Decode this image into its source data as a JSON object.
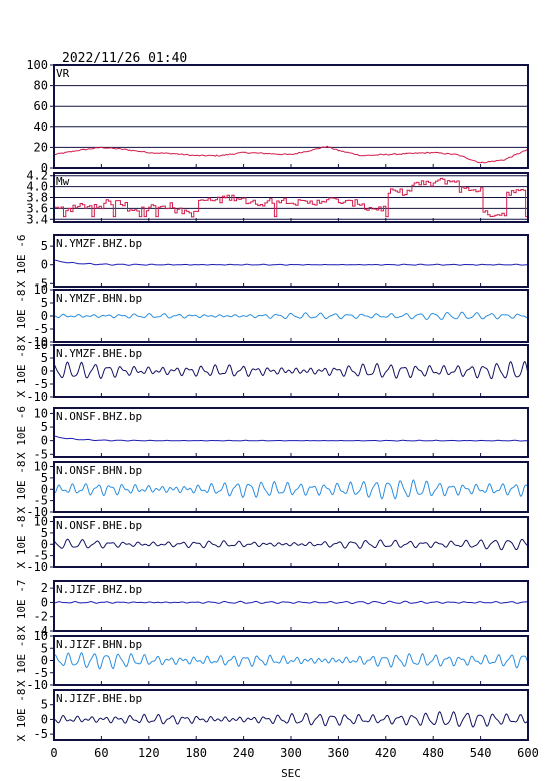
{
  "header": {
    "timestamp": "2022/11/26 01:40"
  },
  "chart_data": {
    "type": "line",
    "xlabel": "SEC",
    "xlim": [
      0,
      600
    ],
    "x_ticks": [
      "0",
      "60",
      "120",
      "180",
      "240",
      "300",
      "360",
      "420",
      "480",
      "540",
      "600"
    ],
    "colors": {
      "vr": "#d21a4a",
      "mw": "#d21a4a",
      "z": "#1a1ab4",
      "n": "#2a8ee0",
      "e": "#101060",
      "frame": "#101040"
    },
    "panels": [
      {
        "id": "vr",
        "label": "VR",
        "kind": "curve",
        "ylim": [
          0,
          100
        ],
        "y_ticks": [
          "0",
          "20",
          "40",
          "60",
          "80",
          "100"
        ],
        "grid": true,
        "color_key": "vr",
        "x": [
          0,
          30,
          60,
          90,
          120,
          150,
          180,
          210,
          240,
          270,
          300,
          330,
          345,
          360,
          390,
          420,
          450,
          480,
          510,
          540,
          570,
          600
        ],
        "y": [
          13,
          17,
          20,
          18,
          15,
          14,
          12,
          12,
          15,
          14,
          13,
          18,
          21,
          17,
          12,
          13,
          14,
          15,
          13,
          5,
          8,
          18
        ]
      },
      {
        "id": "mw",
        "label": "Mw",
        "kind": "step",
        "ylim": [
          3.35,
          4.25
        ],
        "y_ticks": [
          "3.4",
          "3.6",
          "3.8",
          "4.0",
          "4.2"
        ],
        "grid": true,
        "color_key": "mw",
        "x": [
          0,
          30,
          60,
          90,
          120,
          150,
          170,
          180,
          210,
          240,
          270,
          300,
          330,
          360,
          390,
          420,
          450,
          480,
          510,
          540,
          570,
          600
        ],
        "y": [
          3.6,
          3.65,
          3.7,
          3.6,
          3.65,
          3.55,
          3.5,
          3.75,
          3.8,
          3.7,
          3.75,
          3.7,
          3.75,
          3.7,
          3.6,
          3.9,
          4.05,
          4.1,
          3.95,
          3.5,
          3.9,
          3.9
        ]
      },
      {
        "id": "ymzf-bhz",
        "label": "N.YMZF.BHZ.bp",
        "kind": "wave",
        "color_key": "z",
        "ylim": [
          -6,
          8
        ],
        "y_ticks": [
          "-5",
          "0",
          "5"
        ],
        "y_unit": "X 10E -6",
        "amp": 0.15,
        "period": 20,
        "onset_amp": 0.6
      },
      {
        "id": "ymzf-bhn",
        "label": "N.YMZF.BHN.bp",
        "kind": "wave",
        "color_key": "n",
        "ylim": [
          -10,
          10
        ],
        "y_ticks": [
          "-10",
          "-5",
          "0",
          "5",
          "10"
        ],
        "y_unit": "X 10E -8",
        "amp": 1.2,
        "period": 18,
        "onset_amp": 0
      },
      {
        "id": "ymzf-bhe",
        "label": "N.YMZF.BHE.bp",
        "kind": "wave",
        "color_key": "e",
        "ylim": [
          -10,
          10
        ],
        "y_ticks": [
          "-10",
          "-5",
          "0",
          "5",
          "10"
        ],
        "y_unit": "X 10E -8",
        "amp": 3.0,
        "period": 17,
        "onset_amp": 0
      },
      {
        "id": "onsf-bhz",
        "label": "N.ONSF.BHZ.bp",
        "kind": "wave",
        "color_key": "z",
        "ylim": [
          -6,
          12
        ],
        "y_ticks": [
          "-5",
          "0",
          "5",
          "10"
        ],
        "y_unit": "X 10E -6",
        "amp": 0.15,
        "period": 20,
        "onset_amp": 0.8
      },
      {
        "id": "onsf-bhn",
        "label": "N.ONSF.BHN.bp",
        "kind": "wave",
        "color_key": "n",
        "ylim": [
          -10,
          12
        ],
        "y_ticks": [
          "-10",
          "-5",
          "0",
          "5",
          "10"
        ],
        "y_unit": "X 10E -8",
        "amp": 3.5,
        "period": 16,
        "onset_amp": 0
      },
      {
        "id": "onsf-bhe",
        "label": "N.ONSF.BHE.bp",
        "kind": "wave",
        "color_key": "e",
        "ylim": [
          -10,
          12
        ],
        "y_ticks": [
          "-10",
          "-5",
          "0",
          "5",
          "10"
        ],
        "y_unit": "X 10E -8",
        "amp": 2.0,
        "period": 18,
        "onset_amp": 0
      },
      {
        "id": "jizf-bhz",
        "label": "N.JIZF.BHZ.bp",
        "kind": "wave",
        "color_key": "z",
        "ylim": [
          -4,
          3
        ],
        "y_ticks": [
          "-4",
          "-2",
          "0",
          "2"
        ],
        "y_unit": "X 10E -7",
        "amp": 0.15,
        "period": 19,
        "onset_amp": 0
      },
      {
        "id": "jizf-bhn",
        "label": "N.JIZF.BHN.bp",
        "kind": "wave",
        "color_key": "n",
        "ylim": [
          -10,
          10
        ],
        "y_ticks": [
          "-10",
          "-5",
          "0",
          "5",
          "10"
        ],
        "y_unit": "X 10E -8",
        "amp": 3.0,
        "period": 16,
        "onset_amp": 0
      },
      {
        "id": "jizf-bhe",
        "label": "N.JIZF.BHE.bp",
        "kind": "wave",
        "color_key": "e",
        "ylim": [
          -7,
          10
        ],
        "y_ticks": [
          "-5",
          "0",
          "5"
        ],
        "y_unit": "X 10E -8",
        "amp": 2.2,
        "period": 17,
        "onset_amp": 0
      }
    ]
  }
}
